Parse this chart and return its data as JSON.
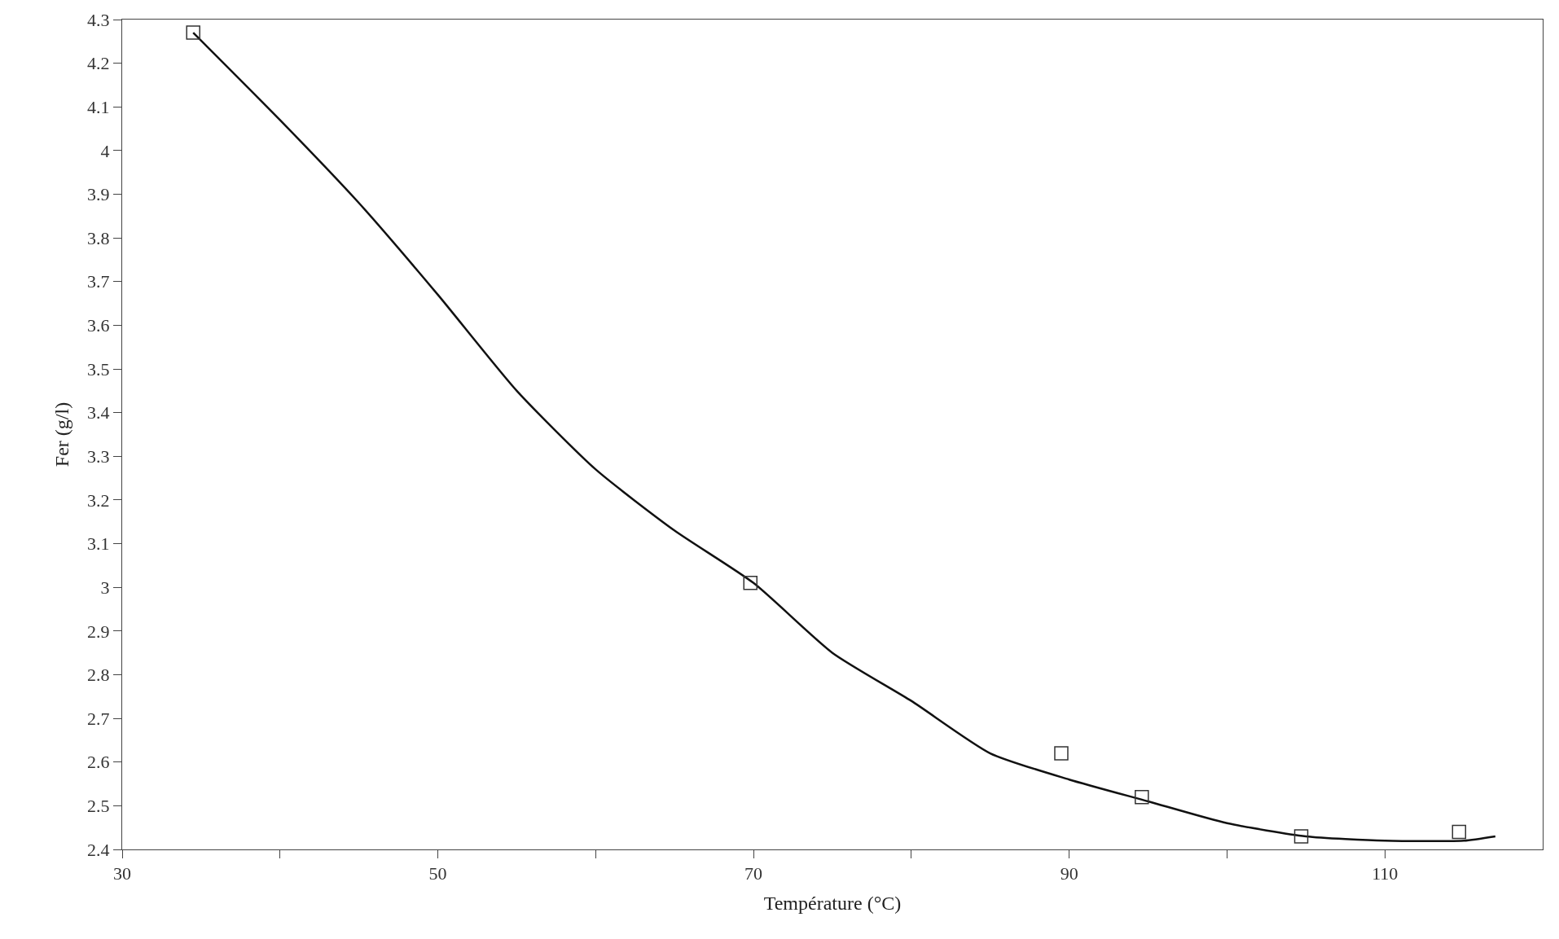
{
  "chart_data": {
    "type": "scatter",
    "xlabel": "Température (°C)",
    "ylabel": "Fer (g/l)",
    "xlim": [
      30,
      120
    ],
    "xticks": [
      30,
      {
        "value": 40,
        "label": null
      },
      50,
      {
        "value": 60,
        "label": null
      },
      70,
      {
        "value": 80,
        "label": null
      },
      90,
      {
        "value": 100,
        "label": null
      },
      110
    ],
    "ylim": [
      2.4,
      4.3
    ],
    "yticks": [
      2.4,
      2.5,
      2.6,
      2.7,
      2.8,
      2.9,
      3,
      3.1,
      3.2,
      3.3,
      3.4,
      3.5,
      3.6,
      3.7,
      3.8,
      3.9,
      4,
      4.1,
      4.2,
      4.3
    ],
    "series": [
      {
        "marker": "square",
        "color": "#333333",
        "x": [
          34.5,
          69.8,
          89.5,
          94.6,
          104.7,
          114.7
        ],
        "values": [
          4.27,
          3.01,
          2.62,
          2.52,
          2.43,
          2.44
        ]
      },
      {
        "type": "line",
        "marker": "none",
        "line_style": "solid",
        "color": "#111111",
        "x": [
          34.5,
          40,
          45,
          50,
          55,
          60,
          65,
          70,
          75,
          80,
          85,
          90,
          95,
          100,
          105,
          110,
          115,
          117
        ],
        "values": [
          4.27,
          4.07,
          3.88,
          3.67,
          3.45,
          3.27,
          3.13,
          3.01,
          2.85,
          2.74,
          2.62,
          2.56,
          2.51,
          2.46,
          2.43,
          2.42,
          2.42,
          2.43
        ]
      }
    ]
  }
}
